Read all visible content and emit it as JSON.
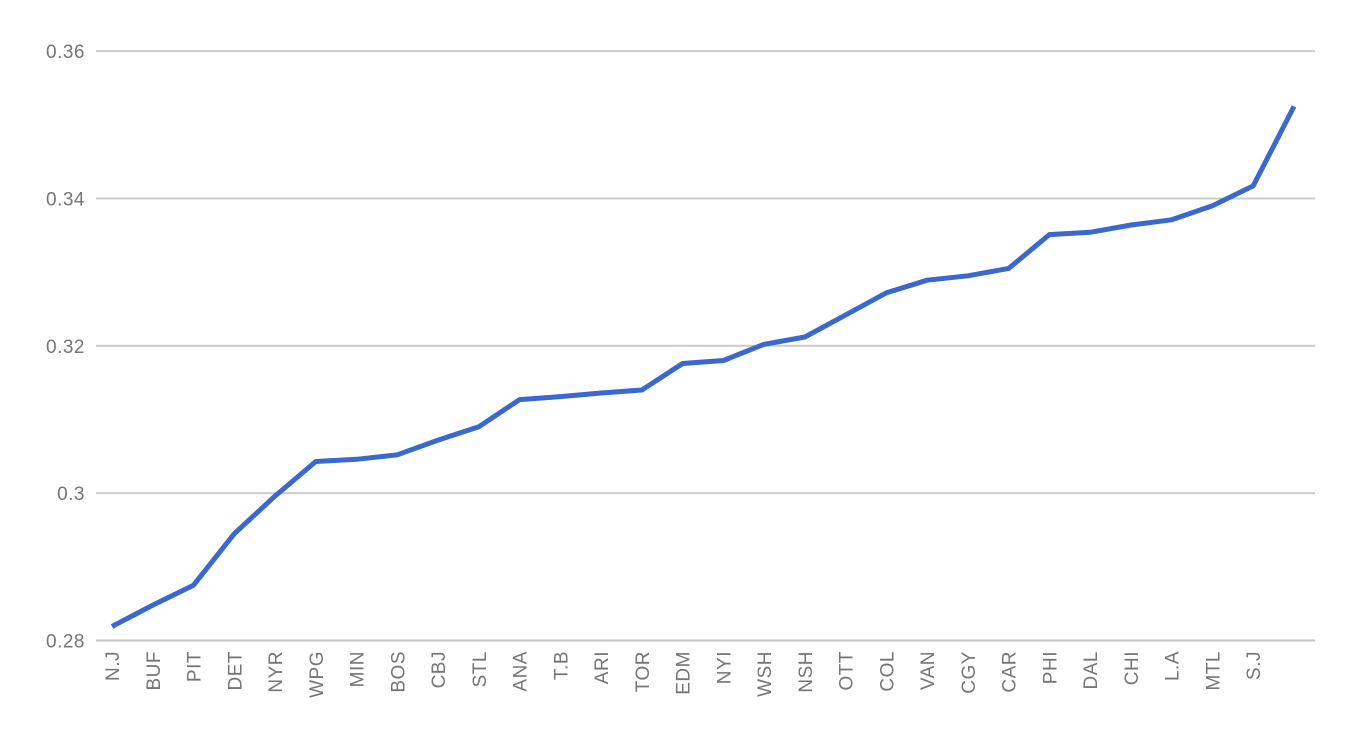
{
  "chart_data": {
    "type": "line",
    "title": "",
    "xlabel": "",
    "ylabel": "",
    "categories": [
      "N.J",
      "BUF",
      "PIT",
      "DET",
      "NYR",
      "WPG",
      "MIN",
      "BOS",
      "CBJ",
      "STL",
      "ANA",
      "T.B",
      "ARI",
      "TOR",
      "EDM",
      "NYI",
      "WSH",
      "NSH",
      "OTT",
      "COL",
      "VAN",
      "CGY",
      "CAR",
      "PHI",
      "DAL",
      "CHI",
      "L.A",
      "MTL",
      "S.J",
      ""
    ],
    "values": [
      0.2819,
      0.2848,
      0.2875,
      0.2945,
      0.2996,
      0.3043,
      0.3046,
      0.3052,
      0.3072,
      0.309,
      0.3127,
      0.3131,
      0.3136,
      0.314,
      0.3176,
      0.318,
      0.3202,
      0.3212,
      0.3242,
      0.3272,
      0.3289,
      0.3295,
      0.3305,
      0.3351,
      0.3354,
      0.3364,
      0.3371,
      0.339,
      0.3417,
      0.3525
    ],
    "series": [
      {
        "name": "",
        "color": "#3A68CF"
      }
    ],
    "y_ticks": [
      0.28,
      0.3,
      0.32,
      0.34,
      0.36
    ],
    "y_tick_labels": [
      "0.28",
      "0.3",
      "0.32",
      "0.34",
      "0.36"
    ],
    "ylim": [
      0.28,
      0.365
    ],
    "grid": true,
    "legend_position": "none",
    "x_labels_rotated_90": true,
    "final_point_unlabeled": true,
    "colors": {
      "line": "#3A68CF",
      "gridline": "#CCCCCC",
      "axis_baseline": "#C2C2C2",
      "tick_label": "#757575",
      "background": "#FFFFFF"
    }
  }
}
